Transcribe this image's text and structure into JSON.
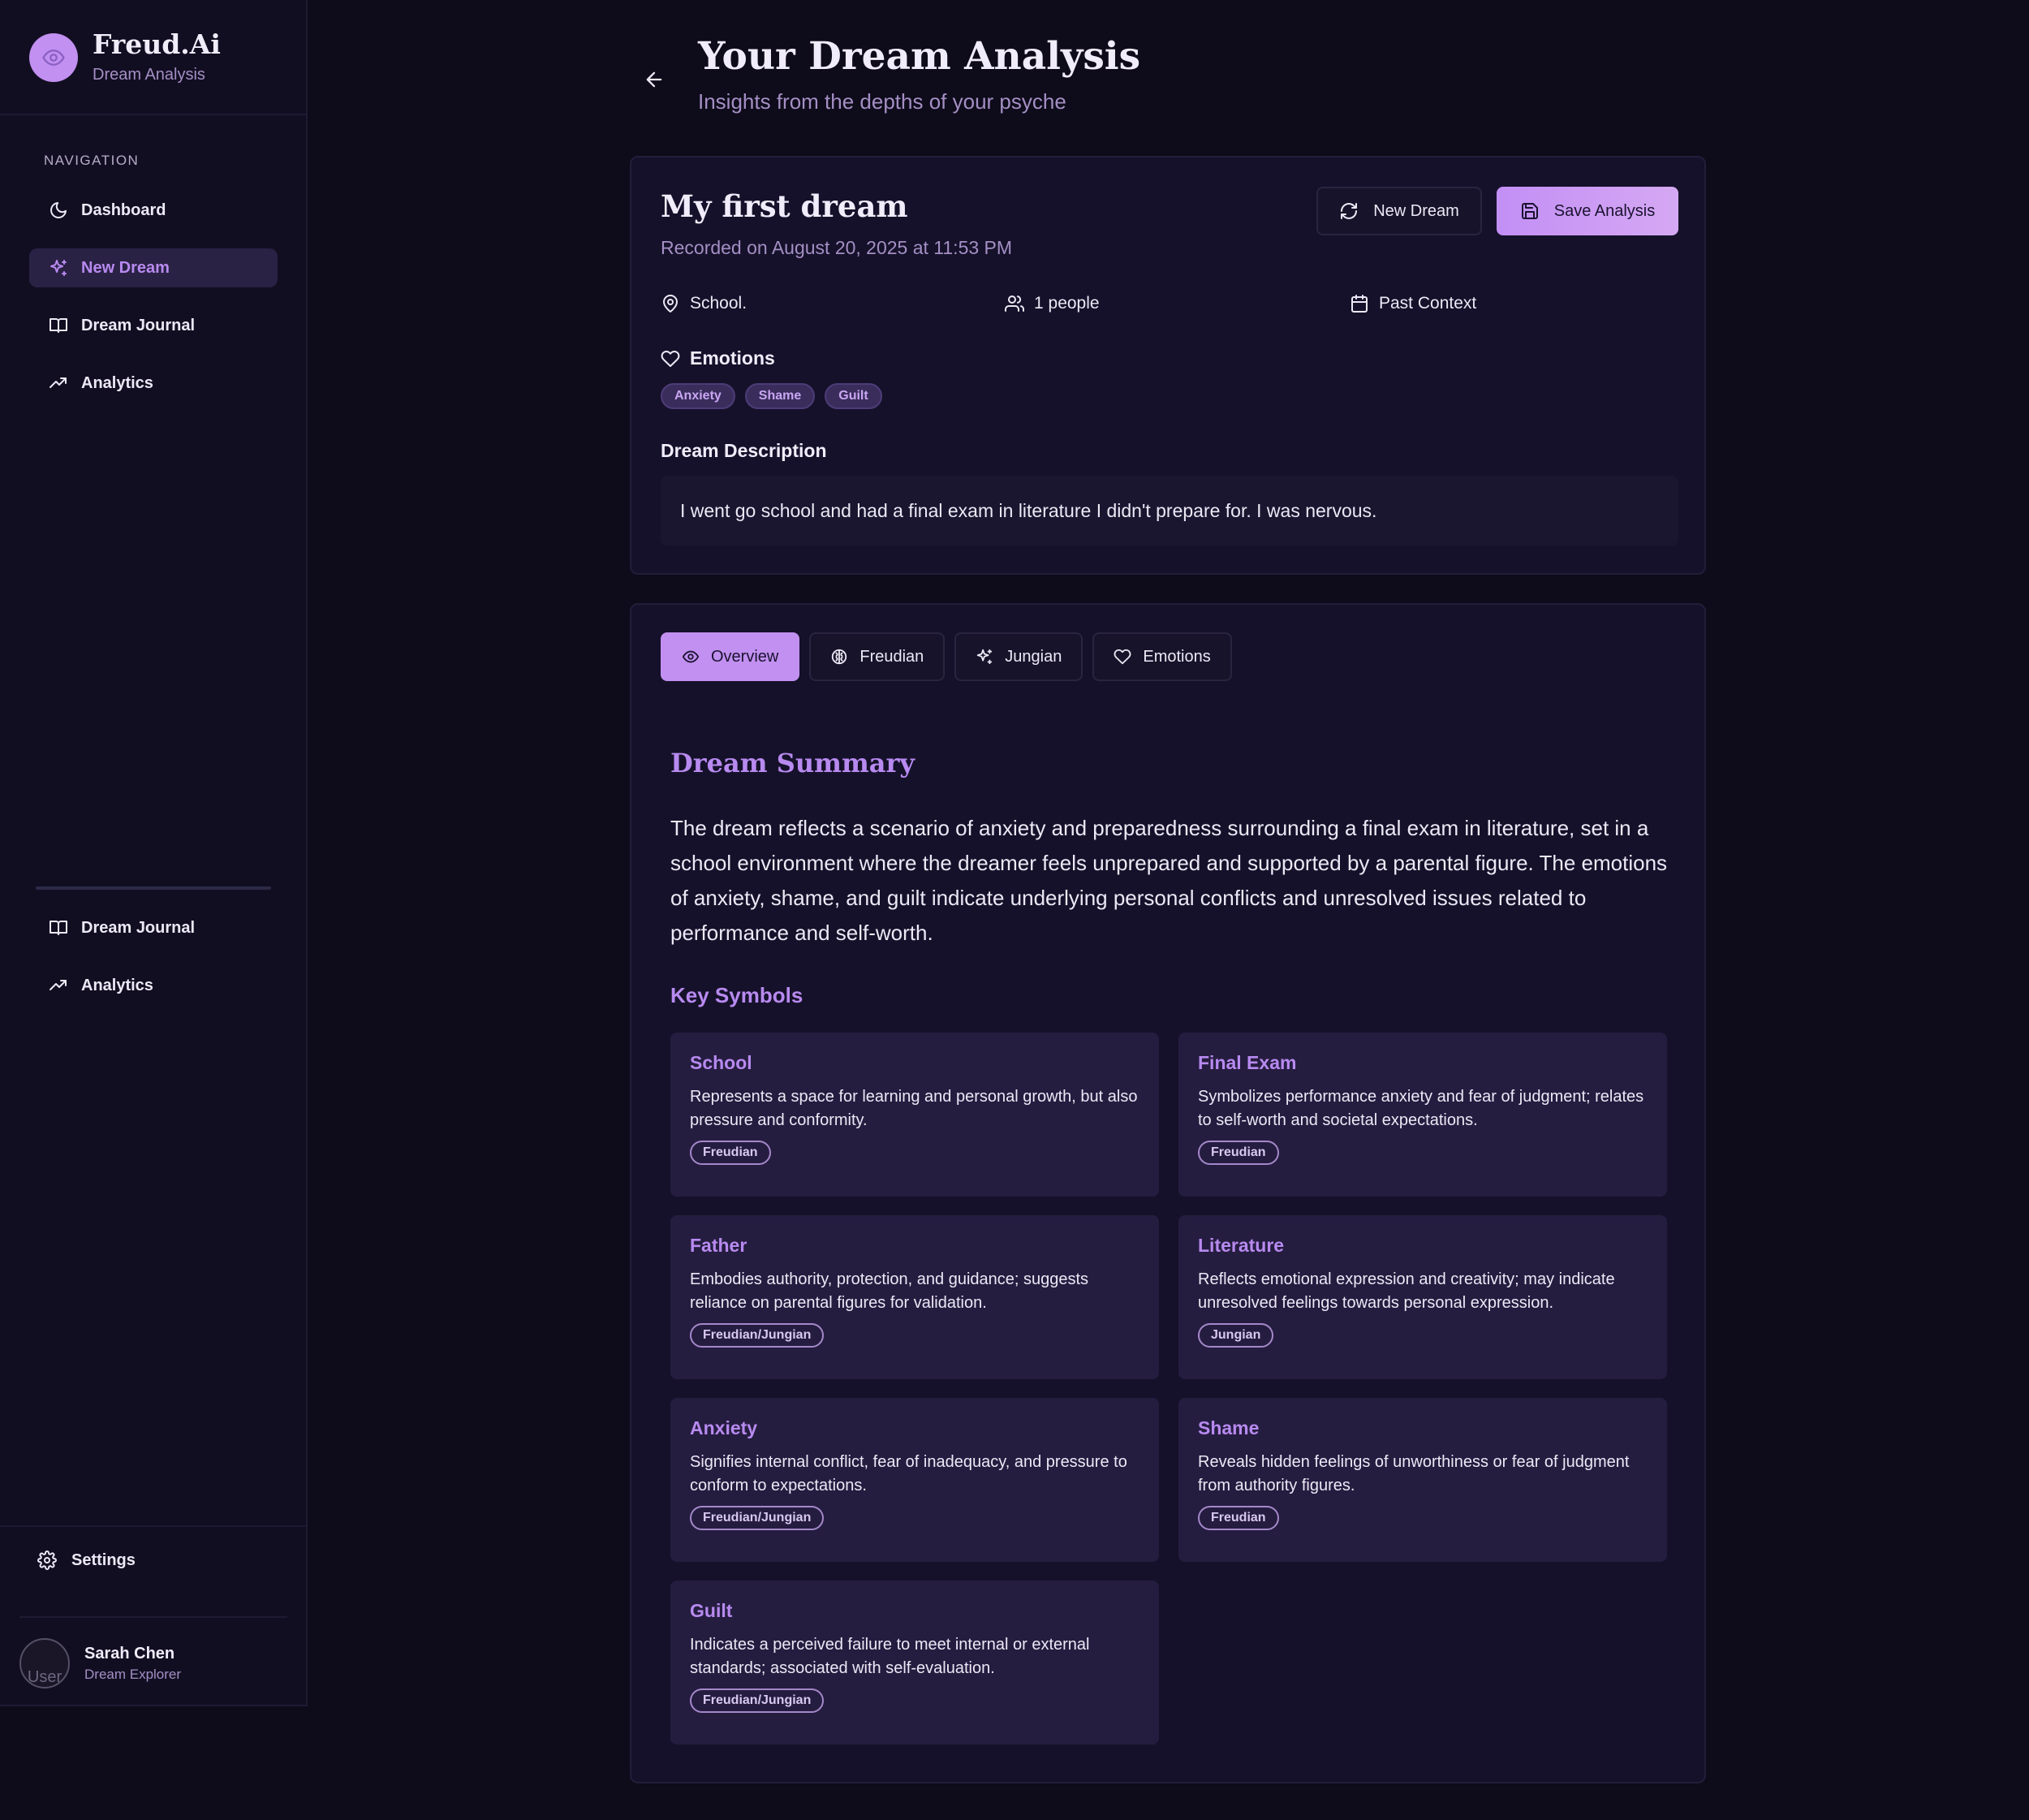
{
  "brand": {
    "title": "Freud.Ai",
    "subtitle": "Dream Analysis"
  },
  "sidebar": {
    "nav_label": "NAVIGATION",
    "items": [
      {
        "label": "Dashboard",
        "icon": "moon-icon",
        "active": false
      },
      {
        "label": "New Dream",
        "icon": "sparkles-icon",
        "active": true
      },
      {
        "label": "Dream Journal",
        "icon": "book-icon",
        "active": false
      },
      {
        "label": "Analytics",
        "icon": "trending-up-icon",
        "active": false
      }
    ],
    "secondary_items": [
      {
        "label": "Dream Journal",
        "icon": "book-icon"
      },
      {
        "label": "Analytics",
        "icon": "trending-up-icon"
      }
    ],
    "settings_label": "Settings",
    "user": {
      "name": "Sarah Chen",
      "role": "Dream Explorer",
      "avatar_alt": "User"
    }
  },
  "header": {
    "title": "Your Dream Analysis",
    "subtitle": "Insights from the depths of your psyche"
  },
  "dream": {
    "title": "My first dream",
    "recorded": "Recorded on August 20, 2025 at 11:53 PM",
    "new_dream_label": "New Dream",
    "save_label": "Save Analysis",
    "location": "School.",
    "people": "1 people",
    "context": "Past Context",
    "emotions_label": "Emotions",
    "emotions": [
      "Anxiety",
      "Shame",
      "Guilt"
    ],
    "description_label": "Dream Description",
    "description": "I went go school and had a final exam in literature I didn't prepare for. I was nervous."
  },
  "tabs": [
    {
      "label": "Overview",
      "icon": "eye-icon",
      "active": true
    },
    {
      "label": "Freudian",
      "icon": "brain-icon",
      "active": false
    },
    {
      "label": "Jungian",
      "icon": "sparkles-icon",
      "active": false
    },
    {
      "label": "Emotions",
      "icon": "heart-icon",
      "active": false
    }
  ],
  "overview": {
    "summary_title": "Dream Summary",
    "summary": "The dream reflects a scenario of anxiety and preparedness surrounding a final exam in literature, set in a school environment where the dreamer feels unprepared and supported by a parental figure. The emotions of anxiety, shame, and guilt indicate underlying personal conflicts and unresolved issues related to performance and self-worth.",
    "symbols_title": "Key Symbols",
    "symbols": [
      {
        "name": "School",
        "text": "Represents a space for learning and personal growth, but also pressure and conformity.",
        "tag": "Freudian"
      },
      {
        "name": "Final Exam",
        "text": "Symbolizes performance anxiety and fear of judgment; relates to self-worth and societal expectations.",
        "tag": "Freudian"
      },
      {
        "name": "Father",
        "text": "Embodies authority, protection, and guidance; suggests reliance on parental figures for validation.",
        "tag": "Freudian/Jungian"
      },
      {
        "name": "Literature",
        "text": "Reflects emotional expression and creativity; may indicate unresolved feelings towards personal expression.",
        "tag": "Jungian"
      },
      {
        "name": "Anxiety",
        "text": "Signifies internal conflict, fear of inadequacy, and pressure to conform to expectations.",
        "tag": "Freudian/Jungian"
      },
      {
        "name": "Shame",
        "text": "Reveals hidden feelings of unworthiness or fear of judgment from authority figures.",
        "tag": "Freudian"
      },
      {
        "name": "Guilt",
        "text": "Indicates a perceived failure to meet internal or external standards; associated with self-evaluation.",
        "tag": "Freudian/Jungian"
      }
    ]
  },
  "colors": {
    "accent": "#c290f0",
    "background": "#0e0b1a",
    "card": "#15112a",
    "symbol_card": "#251d40"
  }
}
